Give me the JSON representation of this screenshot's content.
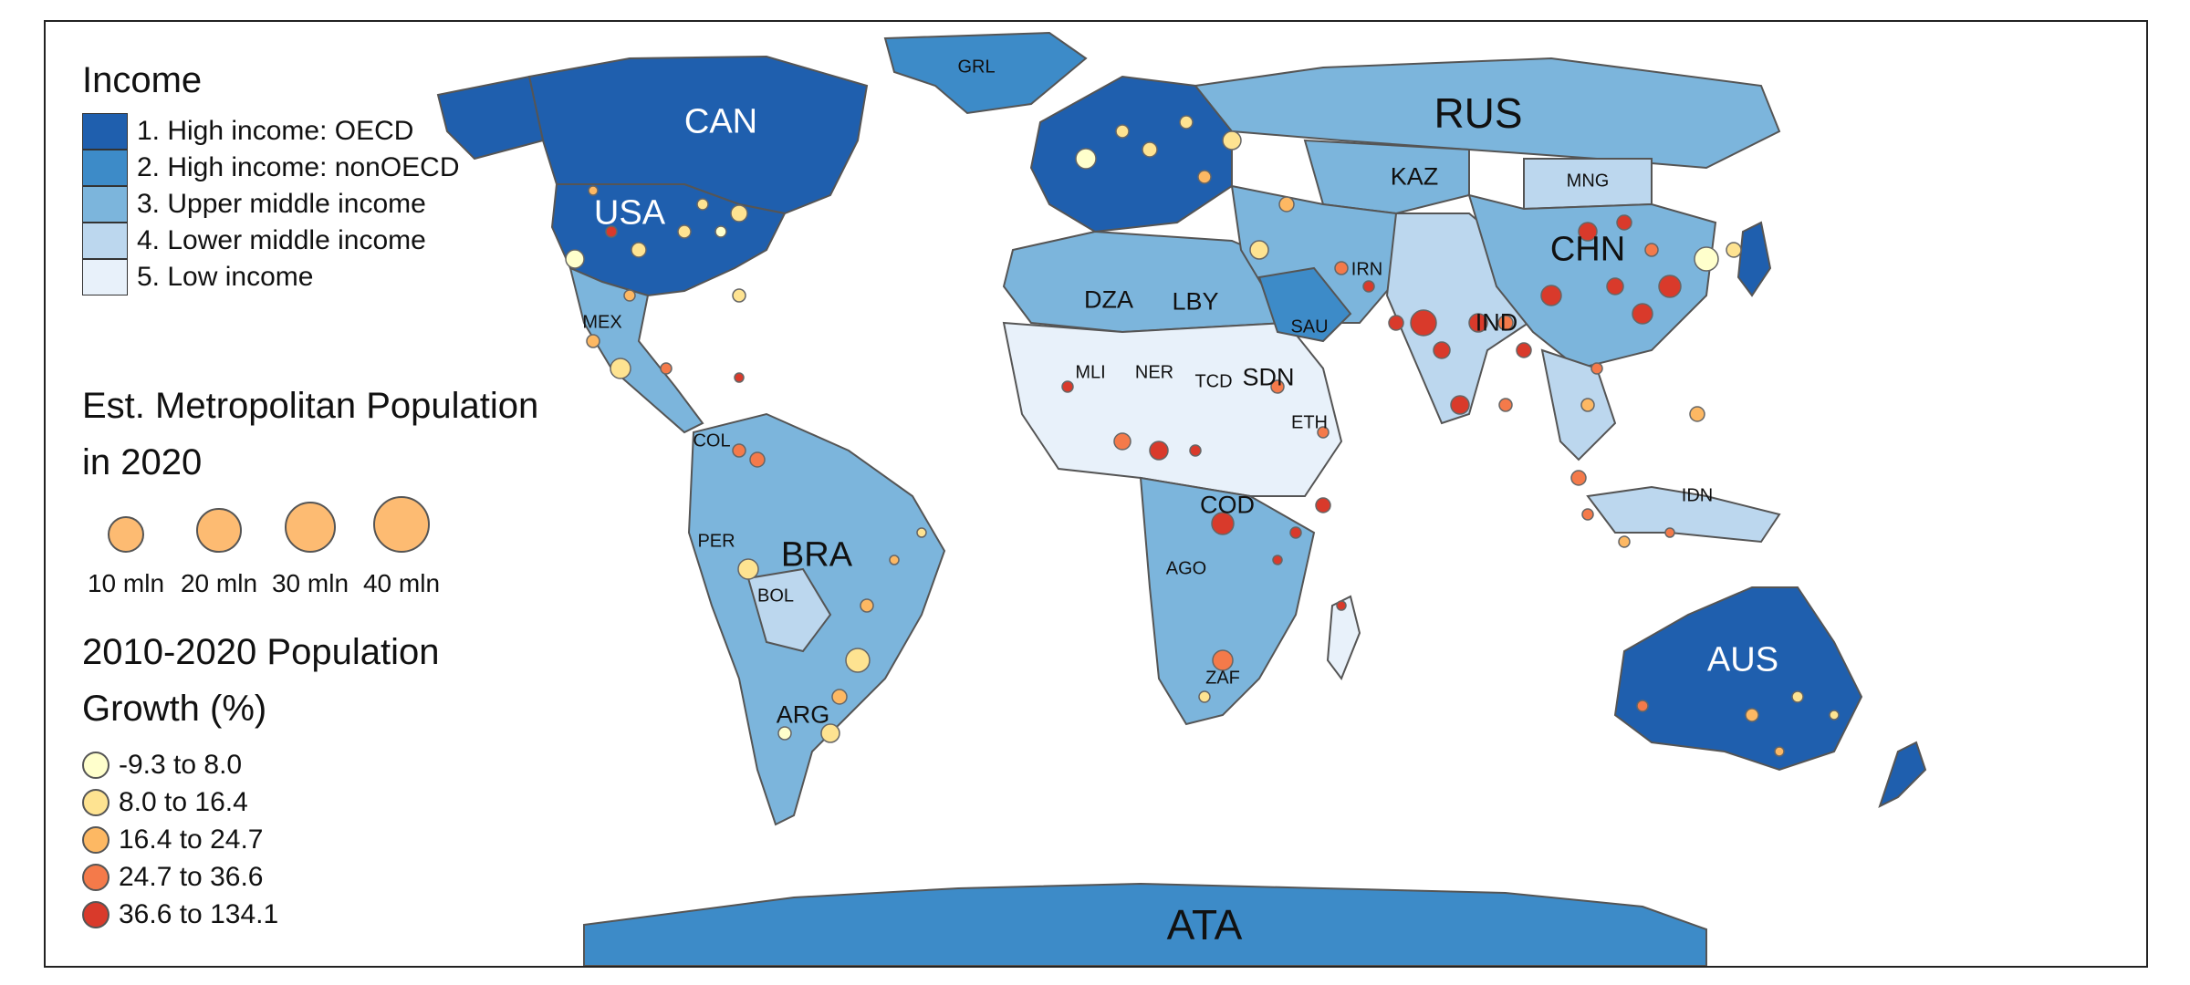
{
  "map": {
    "country_labels": [
      {
        "code": "GRL",
        "size": "s",
        "light": false
      },
      {
        "code": "CAN",
        "display": "CAN",
        "size": "l",
        "light": true
      },
      {
        "code": "USA",
        "size": "l",
        "light": true
      },
      {
        "code": "RUS",
        "size": "xl",
        "light": false
      },
      {
        "code": "KAZ",
        "size": "m",
        "light": false
      },
      {
        "code": "MNG",
        "size": "s",
        "light": false
      },
      {
        "code": "CHN",
        "display": "CHN",
        "size": "l",
        "light": false
      },
      {
        "code": "IRN",
        "display": "IRN",
        "size": "s",
        "light": false
      },
      {
        "code": "DZA",
        "size": "m",
        "light": false
      },
      {
        "code": "LBY",
        "size": "m",
        "light": false
      },
      {
        "code": "SAU",
        "display": "SAU",
        "size": "s",
        "light": false
      },
      {
        "code": "MEX",
        "size": "s",
        "light": false
      },
      {
        "code": "MLI",
        "size": "s",
        "light": false
      },
      {
        "code": "NER",
        "size": "s",
        "light": false
      },
      {
        "code": "TCD",
        "size": "s",
        "light": false
      },
      {
        "code": "SDN",
        "display": "SDN",
        "size": "m",
        "light": false
      },
      {
        "code": "ETH",
        "display": "ETH",
        "size": "s",
        "light": false
      },
      {
        "code": "IND",
        "display": "IND",
        "size": "m",
        "light": false
      },
      {
        "code": "COL",
        "display": "COL",
        "size": "s",
        "light": false
      },
      {
        "code": "COD",
        "size": "m",
        "light": false
      },
      {
        "code": "PER",
        "size": "s",
        "light": false
      },
      {
        "code": "BRA",
        "size": "l",
        "light": false
      },
      {
        "code": "AGO",
        "size": "s",
        "light": false
      },
      {
        "code": "BOL",
        "display": "BOL",
        "size": "s",
        "light": false
      },
      {
        "code": "IDN",
        "size": "s",
        "light": false
      },
      {
        "code": "ZAF",
        "display": "ZAF",
        "size": "s",
        "light": false
      },
      {
        "code": "ARG",
        "display": "ARG",
        "size": "m",
        "light": false
      },
      {
        "code": "AUS",
        "size": "l",
        "light": true
      },
      {
        "code": "ATA",
        "size": "xl",
        "light": false
      }
    ]
  },
  "legend_income": {
    "title": "Income",
    "items": [
      {
        "label": "1. High income: OECD",
        "color": "#1f5fae"
      },
      {
        "label": "2. High income: nonOECD",
        "color": "#3d8bc8"
      },
      {
        "label": "3. Upper middle income",
        "color": "#7cb5dc"
      },
      {
        "label": "4. Lower middle income",
        "color": "#bcd7ee"
      },
      {
        "label": "5. Low income",
        "color": "#e8f1fa"
      }
    ]
  },
  "legend_size": {
    "title_line1": "Est. Metropolitan Population",
    "title_line2": "in 2020",
    "items": [
      {
        "label": "10 mln",
        "value": 10
      },
      {
        "label": "20 mln",
        "value": 20
      },
      {
        "label": "30 mln",
        "value": 30
      },
      {
        "label": "40 mln",
        "value": 40
      }
    ],
    "color": "#fdbb72"
  },
  "legend_growth": {
    "title_line1": "2010-2020 Population",
    "title_line2": "Growth (%)",
    "items": [
      {
        "label": "-9.3 to 8.0",
        "color": "#ffffcc"
      },
      {
        "label": "8.0 to 16.4",
        "color": "#fee391"
      },
      {
        "label": "16.4 to 24.7",
        "color": "#fdb863"
      },
      {
        "label": "24.7 to 36.6",
        "color": "#f47a4a"
      },
      {
        "label": "36.6 to 134.1",
        "color": "#d93a2b"
      }
    ]
  },
  "colors": {
    "ocean": "#ffffff",
    "border": "#555555"
  }
}
